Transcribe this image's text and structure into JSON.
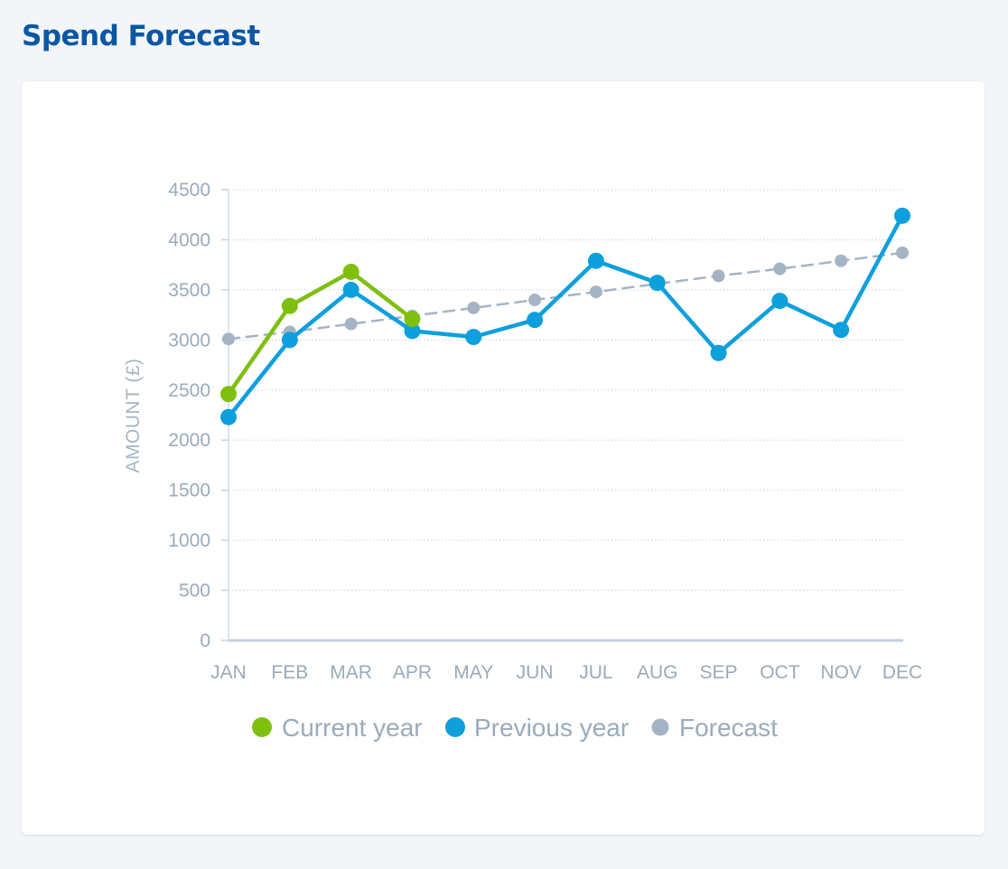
{
  "page": {
    "title": "Spend Forecast"
  },
  "chart_data": {
    "type": "line",
    "categories": [
      "JAN",
      "FEB",
      "MAR",
      "APR",
      "MAY",
      "JUN",
      "JUL",
      "AUG",
      "SEP",
      "OCT",
      "NOV",
      "DEC"
    ],
    "ylabel": "AMOUNT (£)",
    "ylim": [
      0,
      4500
    ],
    "yticks": [
      0,
      500,
      1000,
      1500,
      2000,
      2500,
      3000,
      3500,
      4000,
      4500
    ],
    "grid": "horizontal dotted",
    "legend_position": "bottom-center",
    "series": [
      {
        "name": "Forecast",
        "color": "#a4b4c4",
        "style": "dashed",
        "values": [
          3010,
          3080,
          3160,
          3240,
          3320,
          3400,
          3480,
          3560,
          3640,
          3710,
          3790,
          3870
        ]
      },
      {
        "name": "Previous year",
        "color": "#0ea0dc",
        "style": "solid",
        "values": [
          2230,
          3000,
          3500,
          3090,
          3030,
          3200,
          3790,
          3570,
          2870,
          3390,
          3100,
          4240
        ]
      },
      {
        "name": "Current year",
        "color": "#7fbf10",
        "style": "solid",
        "values": [
          2460,
          3340,
          3680,
          3210,
          null,
          null,
          null,
          null,
          null,
          null,
          null,
          null
        ]
      }
    ],
    "legend_order": [
      "Current year",
      "Previous year",
      "Forecast"
    ]
  }
}
